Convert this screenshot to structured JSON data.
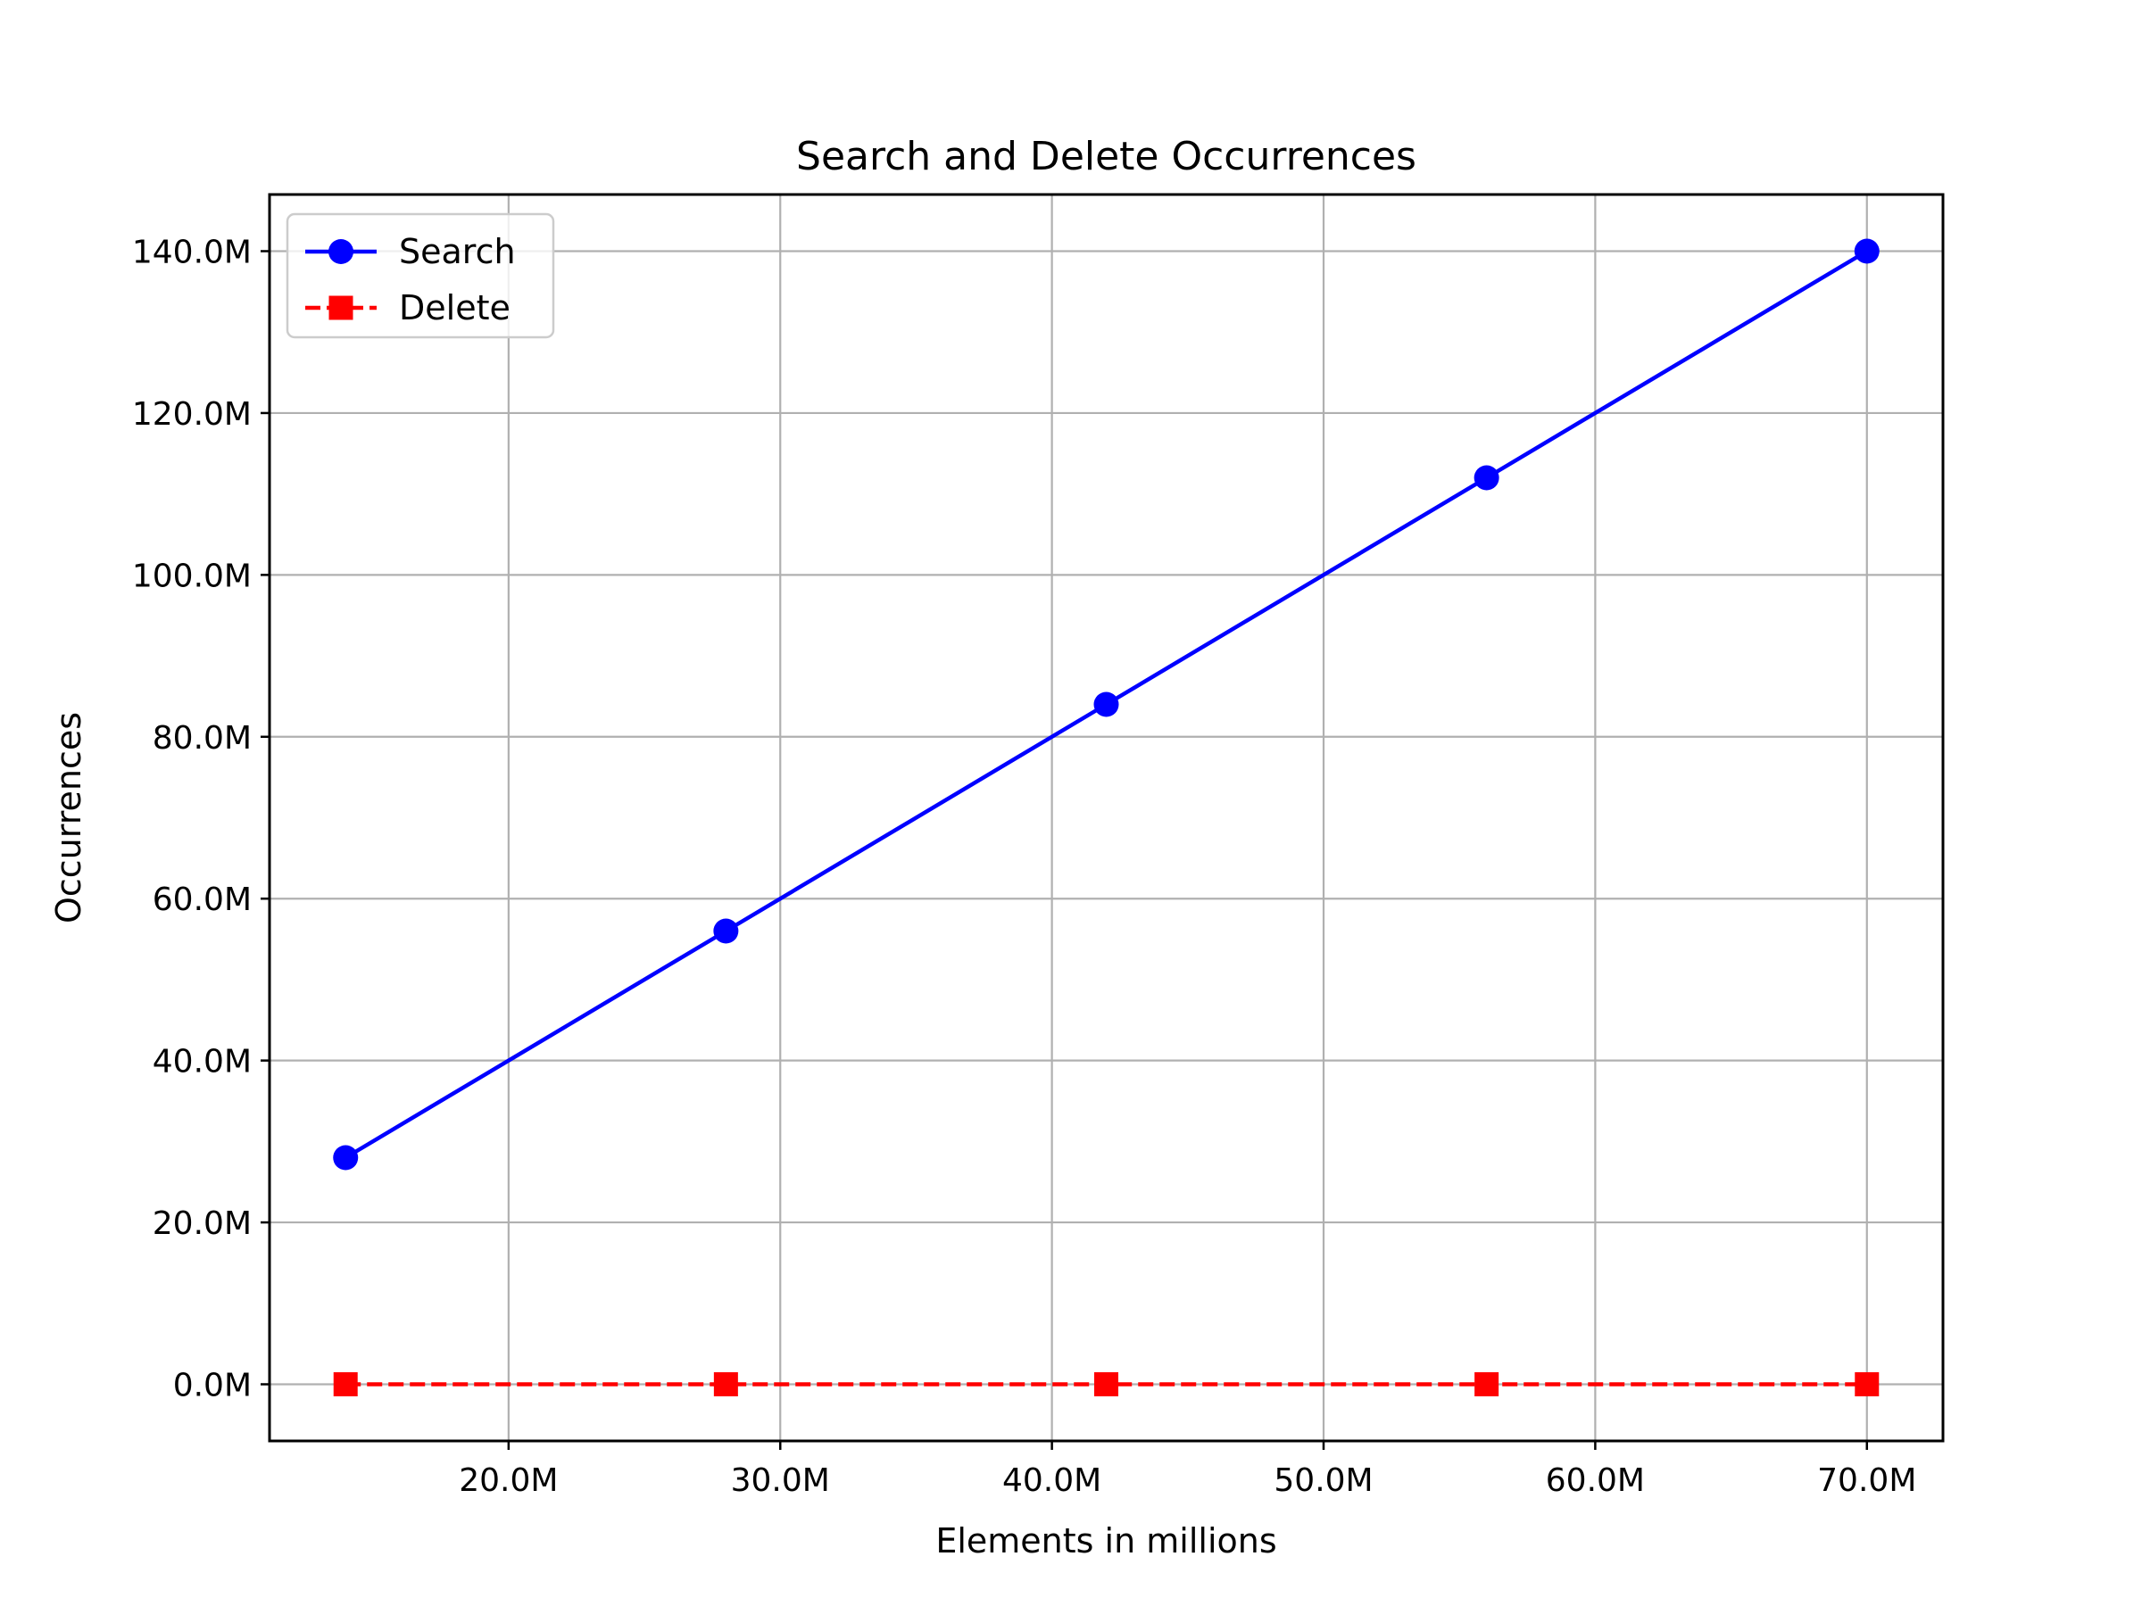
{
  "chart_data": {
    "type": "line",
    "title": "Search and Delete Occurrences",
    "xlabel": "Elements in millions",
    "ylabel": "Occurrences",
    "x": [
      14000000,
      28000000,
      42000000,
      56000000,
      70000000
    ],
    "xlim": [
      11200000,
      72800000
    ],
    "ylim": [
      -7000000,
      147000000
    ],
    "x_ticks": [
      20000000,
      30000000,
      40000000,
      50000000,
      60000000,
      70000000
    ],
    "x_tick_labels": [
      "20.0M",
      "30.0M",
      "40.0M",
      "50.0M",
      "60.0M",
      "70.0M"
    ],
    "y_ticks": [
      0,
      20000000,
      40000000,
      60000000,
      80000000,
      100000000,
      120000000,
      140000000
    ],
    "y_tick_labels": [
      "0.0M",
      "20.0M",
      "40.0M",
      "60.0M",
      "80.0M",
      "100.0M",
      "120.0M",
      "140.0M"
    ],
    "grid": true,
    "legend_position": "top-left",
    "series": [
      {
        "name": "Search",
        "values": [
          28000000,
          56000000,
          84000000,
          112000000,
          140000000
        ],
        "color": "#0000ff",
        "marker": "circle",
        "line_style": "solid"
      },
      {
        "name": "Delete",
        "values": [
          0,
          0,
          0,
          0,
          0
        ],
        "color": "#ff0000",
        "marker": "square",
        "line_style": "dashed"
      }
    ]
  }
}
